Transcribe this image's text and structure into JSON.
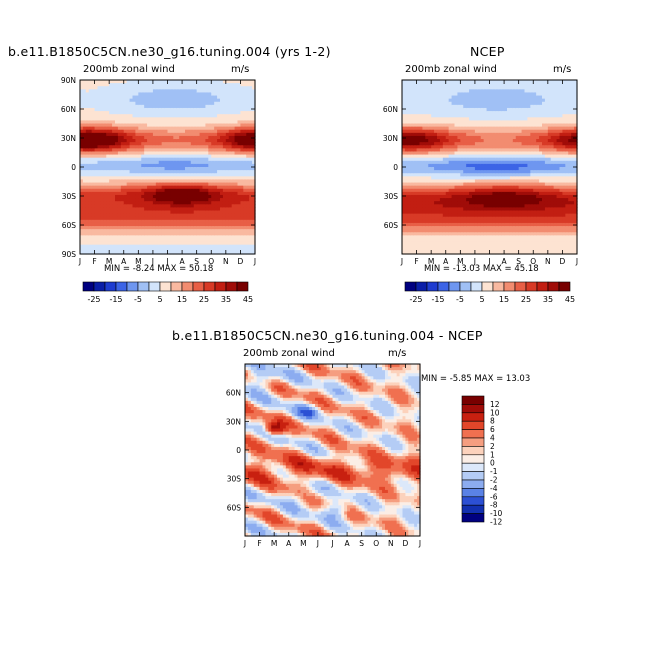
{
  "panels": [
    {
      "title": "b.e11.B1850C5CN.ne30_g16.tuning.004 (yrs 1-2)",
      "left_label": "200mb zonal wind",
      "right_label": "m/s",
      "minmax": "MIN =  -8.24  MAX =  50.18"
    },
    {
      "title": "NCEP",
      "left_label": "200mb zonal wind",
      "right_label": "m/s",
      "minmax": "MIN = -13.03  MAX =  45.18"
    },
    {
      "title": "b.e11.B1850C5CN.ne30_g16.tuning.004 - NCEP",
      "left_label": "200mb zonal wind",
      "right_label": "m/s",
      "minmax": "MIN =   -5.85  MAX =  13.03"
    }
  ],
  "chart_data": [
    {
      "type": "heatmap",
      "title": "b.e11.B1850C5CN.ne30_g16.tuning.004 (yrs 1-2)",
      "x_tick_labels": [
        "J",
        "F",
        "M",
        "A",
        "M",
        "J",
        "J",
        "A",
        "S",
        "O",
        "N",
        "D",
        "J"
      ],
      "y_tick_labels": [
        "90N",
        "60N",
        "30N",
        "0",
        "30S",
        "60S",
        "90S"
      ],
      "contour_levels": [
        -25,
        -20,
        -15,
        -10,
        -5,
        0,
        5,
        10,
        15,
        20,
        25,
        30,
        35,
        40,
        45
      ],
      "colorbar_labels": [
        "-25",
        "-15",
        "-5",
        "5",
        "15",
        "25",
        "35",
        "45"
      ],
      "zones": [
        {
          "lat": 28,
          "peak_months": [
            "J",
            "D"
          ],
          "max": 50
        },
        {
          "lat": 0,
          "min": -8
        },
        {
          "lat": -28,
          "peak_months": [
            "J",
            "A"
          ],
          "max": 45
        },
        {
          "lat": -45,
          "value": 25
        }
      ],
      "min": -8.24,
      "max": 50.18
    },
    {
      "type": "heatmap",
      "title": "NCEP",
      "x_tick_labels": [
        "J",
        "F",
        "M",
        "A",
        "M",
        "J",
        "J",
        "A",
        "S",
        "O",
        "N",
        "D",
        "J"
      ],
      "y_tick_labels": [
        "60N",
        "30N",
        "0",
        "30S",
        "60S"
      ],
      "contour_levels": [
        -25,
        -20,
        -15,
        -10,
        -5,
        0,
        5,
        10,
        15,
        20,
        25,
        30,
        35,
        40,
        45
      ],
      "colorbar_labels": [
        "-25",
        "-15",
        "-5",
        "5",
        "15",
        "25",
        "35",
        "45"
      ],
      "zones": [
        {
          "lat": 28,
          "peak_months": [
            "J",
            "D"
          ],
          "max": 42
        },
        {
          "lat": 0,
          "min": -13
        },
        {
          "lat": -28,
          "peak_months": [
            "J",
            "A"
          ],
          "max": 38
        },
        {
          "lat": -45,
          "value": 30
        }
      ],
      "min": -13.03,
      "max": 45.18
    },
    {
      "type": "heatmap",
      "title": "b.e11.B1850C5CN.ne30_g16.tuning.004 - NCEP",
      "x_tick_labels": [
        "J",
        "F",
        "M",
        "A",
        "M",
        "J",
        "J",
        "A",
        "S",
        "O",
        "N",
        "D",
        "J"
      ],
      "y_tick_labels": [
        "60N",
        "30N",
        "0",
        "30S",
        "60S"
      ],
      "contour_levels": [
        -12,
        -10,
        -8,
        -6,
        -4,
        -2,
        -1,
        0,
        1,
        2,
        4,
        6,
        8,
        10,
        12
      ],
      "colorbar_labels": [
        "12",
        "10",
        "8",
        "6",
        "4",
        "2",
        "1",
        "0",
        "-1",
        "-2",
        "-4",
        "-6",
        "-8",
        "-10",
        "-12"
      ],
      "min": -5.85,
      "max": 13.03
    }
  ],
  "colors": {
    "seq_colorbar": [
      "#000080",
      "#0a1ea8",
      "#1e3cd0",
      "#3c64e6",
      "#6e96f0",
      "#a0c0f5",
      "#d2e4fb",
      "#fde3d2",
      "#f9b9a0",
      "#f28c70",
      "#e85f46",
      "#d83a26",
      "#c21e12",
      "#a00c08",
      "#780000"
    ],
    "diff_colorbar": [
      "#780000",
      "#a00c08",
      "#c82010",
      "#e2462a",
      "#f07050",
      "#f59e80",
      "#fcd2bc",
      "#fbeee6",
      "#dce8fa",
      "#b4ccf5",
      "#8cacf0",
      "#5a82e6",
      "#2c50d4",
      "#1230b0",
      "#000080"
    ]
  }
}
